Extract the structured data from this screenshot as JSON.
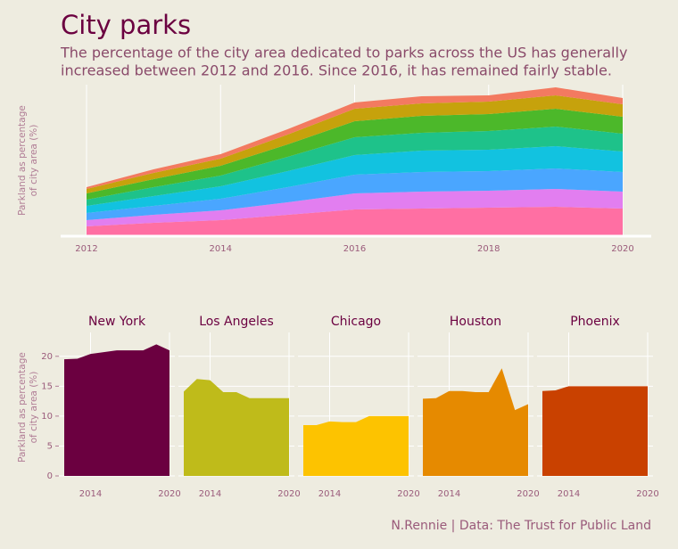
{
  "title": "City parks",
  "subtitle": [
    "The percentage of the city area dedicated to parks across the US has generally",
    "increased between 2012 and 2016. Since 2016, it has remained fairly stable."
  ],
  "caption": "N.Rennie | Data: The Trust for Public Land",
  "chart_data": [
    {
      "type": "stacked_area",
      "y_label": [
        "Parkland as percentage",
        "of city area (%)"
      ],
      "x": [
        2012,
        2013,
        2014,
        2015,
        2016,
        2017,
        2018,
        2019,
        2020
      ],
      "xlim": [
        2012,
        2020
      ],
      "xticks": [
        2012,
        2014,
        2016,
        2018,
        2020
      ],
      "ylim": [
        0,
        170
      ],
      "grid": true,
      "series": [
        {
          "color": "#ff6fa3",
          "values": [
            11,
            15,
            18,
            24,
            30,
            31,
            32,
            33,
            31
          ]
        },
        {
          "color": "#e27ef0",
          "values": [
            7,
            9,
            11,
            14,
            18,
            19,
            19,
            20,
            19
          ]
        },
        {
          "color": "#4aa6ff",
          "values": [
            8,
            10,
            13,
            17,
            21,
            22,
            22,
            23,
            22
          ]
        },
        {
          "color": "#12c2e0",
          "values": [
            8,
            11,
            14,
            18,
            22,
            24,
            24,
            25,
            23
          ]
        },
        {
          "color": "#1ec28a",
          "values": [
            7,
            10,
            12,
            16,
            20,
            20,
            21,
            22,
            20
          ]
        },
        {
          "color": "#4cb82a",
          "values": [
            7,
            9,
            11,
            14,
            18,
            19,
            19,
            20,
            19
          ]
        },
        {
          "color": "#c6a20c",
          "values": [
            5,
            7,
            8,
            11,
            14,
            14,
            14,
            15,
            14
          ]
        },
        {
          "color": "#f37a60",
          "values": [
            2,
            4,
            5,
            6,
            7,
            8,
            7,
            9,
            7
          ]
        }
      ]
    },
    {
      "type": "area_panels",
      "y_label": [
        "Parkland as percentage",
        "of city area (%)"
      ],
      "x": [
        2012,
        2013,
        2014,
        2015,
        2016,
        2017,
        2018,
        2019,
        2020
      ],
      "xlim": [
        2012,
        2020
      ],
      "xticks": [
        2014,
        2020
      ],
      "ylim": [
        0,
        22.5
      ],
      "yticks": [
        0,
        5,
        10,
        15,
        20
      ],
      "grid": true,
      "panels": [
        {
          "title": "New York",
          "color": "#6b0040",
          "values": [
            19.5,
            19.6,
            20.4,
            20.7,
            21,
            21,
            21,
            22,
            21
          ]
        },
        {
          "title": "Los Angeles",
          "color": "#bfbb1a",
          "values": [
            14.1,
            16.2,
            16,
            14,
            14,
            13,
            13,
            13,
            13
          ]
        },
        {
          "title": "Chicago",
          "color": "#fdc300",
          "values": [
            8.5,
            8.5,
            9.1,
            9,
            9,
            10,
            10,
            10,
            10
          ]
        },
        {
          "title": "Houston",
          "color": "#e68a00",
          "values": [
            12.9,
            13,
            14.2,
            14.2,
            14,
            14,
            18,
            11,
            12
          ]
        },
        {
          "title": "Phoenix",
          "color": "#c94100",
          "values": [
            14.2,
            14.3,
            15,
            15,
            15,
            15,
            15,
            15,
            15
          ]
        }
      ]
    }
  ]
}
